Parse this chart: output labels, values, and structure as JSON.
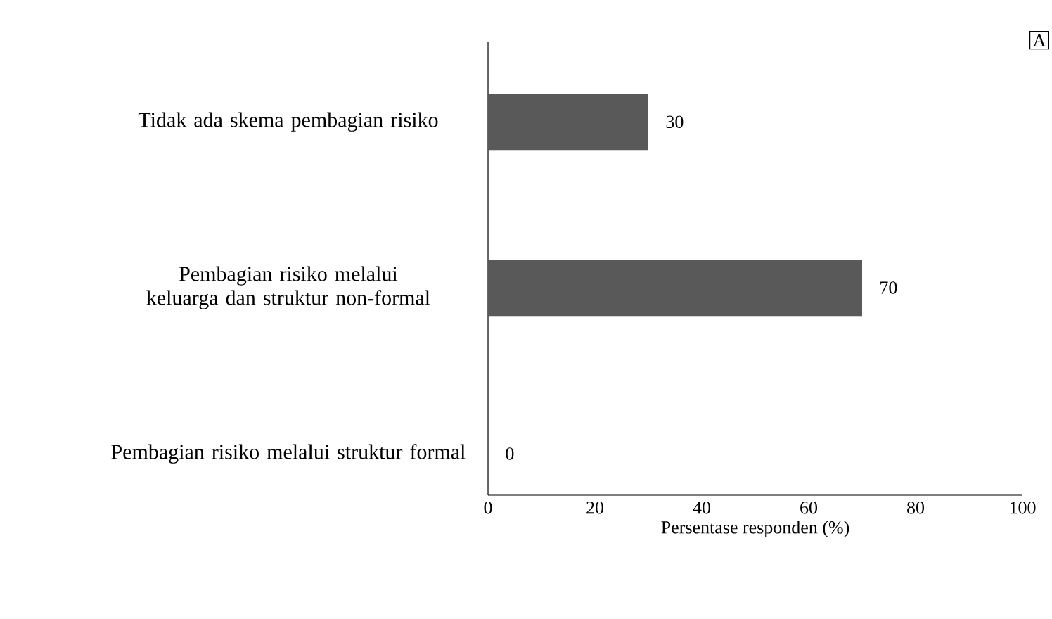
{
  "chart_data": {
    "type": "bar",
    "orientation": "horizontal",
    "categories": [
      "Tidak ada skema pembagian risiko",
      "Pembagian risiko melalui keluarga dan struktur non-formal",
      "Pembagian risiko melalui struktur formal"
    ],
    "values": [
      30,
      70,
      0
    ],
    "color": "#595959",
    "xlim": [
      0,
      100
    ],
    "xticks": [
      0,
      20,
      40,
      60,
      80,
      100
    ],
    "xlabel": "Persentase responden (%)",
    "data_labels": true,
    "grid": false,
    "annotations": [
      "A"
    ]
  }
}
